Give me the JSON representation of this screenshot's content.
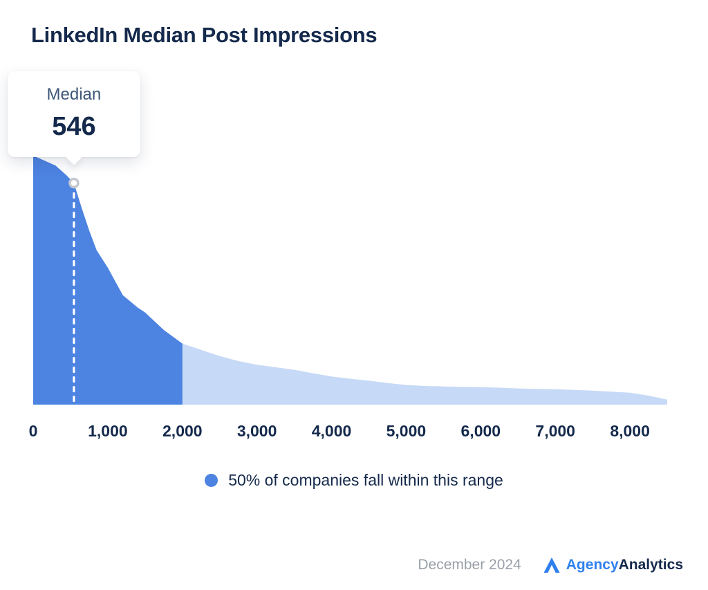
{
  "title": "LinkedIn Median Post Impressions",
  "tooltip": {
    "label": "Median",
    "value": "546"
  },
  "legend": {
    "text": "50% of companies fall within this range"
  },
  "footer": {
    "date": "December 2024",
    "brand": {
      "first": "Agency",
      "second": "Analytics"
    }
  },
  "colors": {
    "dark_area": "#4d83e1",
    "light_area": "#c6d9f6",
    "title_text": "#14294b",
    "muted_text": "#9aa0a8",
    "brand_blue": "#2f80ed",
    "median_line": "#ffffff",
    "marker_ring": "#c3c8d0"
  },
  "chart_data": {
    "type": "area",
    "title": "LinkedIn Median Post Impressions",
    "x_ticks": [
      "0",
      "1,000",
      "2,000",
      "3,000",
      "4,000",
      "5,000",
      "6,000",
      "7,000",
      "8,000"
    ],
    "x_tick_values": [
      0,
      1000,
      2000,
      3000,
      4000,
      5000,
      6000,
      7000,
      8000
    ],
    "x_range": [
      0,
      8500
    ],
    "y_axis": "relative share of companies (unlabeled axis, values normalized to % of peak)",
    "median": 546,
    "median_label": "Median",
    "median_value_label": "546",
    "highlight_range": [
      0,
      2000
    ],
    "highlight_note": "50% of companies fall within this range",
    "legend_position": "bottom-center",
    "grid": false,
    "points": [
      [
        0,
        100
      ],
      [
        300,
        96
      ],
      [
        450,
        92
      ],
      [
        546,
        89
      ],
      [
        650,
        79
      ],
      [
        750,
        70
      ],
      [
        850,
        62
      ],
      [
        1000,
        55
      ],
      [
        1200,
        44
      ],
      [
        1400,
        39
      ],
      [
        1500,
        37
      ],
      [
        1750,
        30
      ],
      [
        2000,
        24.5
      ],
      [
        2250,
        22
      ],
      [
        2500,
        19.5
      ],
      [
        2750,
        17.5
      ],
      [
        3000,
        16
      ],
      [
        3250,
        15
      ],
      [
        3500,
        14
      ],
      [
        3750,
        12.6
      ],
      [
        4000,
        11.3
      ],
      [
        4250,
        10.4
      ],
      [
        4500,
        9.6
      ],
      [
        4750,
        8.7
      ],
      [
        5000,
        7.9
      ],
      [
        5250,
        7.5
      ],
      [
        5500,
        7.3
      ],
      [
        5750,
        7.1
      ],
      [
        6000,
        7.0
      ],
      [
        6250,
        6.8
      ],
      [
        6500,
        6.5
      ],
      [
        6750,
        6.3
      ],
      [
        7000,
        6.2
      ],
      [
        7250,
        5.9
      ],
      [
        7500,
        5.6
      ],
      [
        7750,
        5.2
      ],
      [
        8000,
        4.8
      ],
      [
        8250,
        3.6
      ],
      [
        8500,
        2.0
      ]
    ]
  }
}
